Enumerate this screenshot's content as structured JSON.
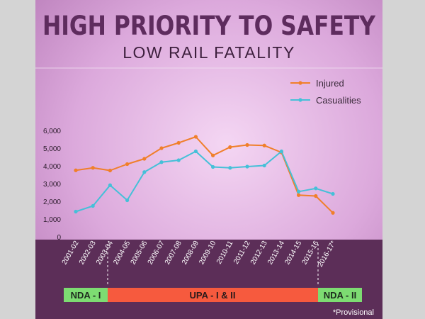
{
  "header": {
    "title": "HIGH PRIORITY TO SAFETY",
    "subtitle": "LOW RAIL FATALITY"
  },
  "colors": {
    "injured": "#f07f2a",
    "casualties": "#45c0d8",
    "bar_green": "#7ddc72",
    "bar_red": "#f65a3e",
    "panel_bottom": "#5c2e58",
    "title": "#5e2c5e"
  },
  "chart_data": {
    "type": "line",
    "title": "",
    "xlabel": "",
    "ylabel": "",
    "ylim": [
      0,
      6000
    ],
    "yticks": [
      0,
      1000,
      2000,
      3000,
      4000,
      5000,
      6000
    ],
    "ytick_labels": [
      "0",
      "1,000",
      "2,000",
      "3,000",
      "4,000",
      "5,000",
      "6,000"
    ],
    "categories": [
      "2001-02",
      "2002-03",
      "2003-04",
      "2004-05",
      "2005-06",
      "2006-07",
      "2007-08",
      "2008-09",
      "2009-10",
      "2010-11",
      "2011-12",
      "2012-13",
      "2013-14",
      "2014-15",
      "2015-16",
      "2016-17*"
    ],
    "series": [
      {
        "name": "Injured",
        "color": "#f07f2a",
        "values": [
          3750,
          3890,
          3740,
          4100,
          4400,
          5000,
          5300,
          5640,
          4590,
          5060,
          5180,
          5150,
          4760,
          2350,
          2300,
          1350
        ]
      },
      {
        "name": "Casualities",
        "color": "#45c0d8",
        "values": [
          1420,
          1740,
          2910,
          2060,
          3650,
          4210,
          4320,
          4820,
          3940,
          3890,
          3960,
          4020,
          4820,
          2550,
          2730,
          2420
        ]
      }
    ],
    "legend": "top-right",
    "grid": false
  },
  "periods": [
    {
      "label": "NDA - I",
      "color": "#7ddc72"
    },
    {
      "label": "UPA - I & II",
      "color": "#f65a3e"
    },
    {
      "label": "NDA - II",
      "color": "#7ddc72"
    }
  ],
  "footnote": "*Provisional"
}
